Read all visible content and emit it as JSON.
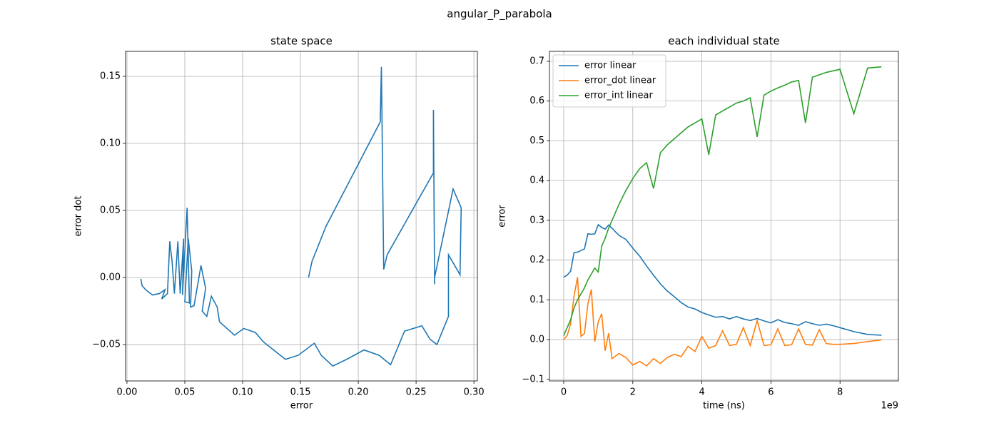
{
  "title": "angular_P_parabola",
  "chart_data": [
    {
      "type": "line",
      "title": "state space",
      "x_label": "error",
      "y_label": "error dot",
      "color": "#1f77b4",
      "grid": true,
      "x": [
        0.157,
        0.16,
        0.172,
        0.219,
        0.22,
        0.222,
        0.225,
        0.265,
        0.265,
        0.266,
        0.266,
        0.282,
        0.289,
        0.288,
        0.278,
        0.278,
        0.268,
        0.262,
        0.255,
        0.24,
        0.228,
        0.218,
        0.205,
        0.19,
        0.178,
        0.168,
        0.162,
        0.148,
        0.137,
        0.118,
        0.111,
        0.101,
        0.093,
        0.08,
        0.078,
        0.073,
        0.069,
        0.065,
        0.068,
        0.064,
        0.058,
        0.055,
        0.056,
        0.053,
        0.05,
        0.054,
        0.052,
        0.048,
        0.049,
        0.046,
        0.044,
        0.041,
        0.039,
        0.037,
        0.035,
        0.03,
        0.033,
        0.028,
        0.022,
        0.016,
        0.013,
        0.012
      ],
      "values": [
        0.0,
        0.012,
        0.038,
        0.116,
        0.157,
        0.006,
        0.017,
        0.078,
        0.125,
        -0.005,
        0.0,
        0.066,
        0.052,
        0.002,
        0.017,
        -0.029,
        -0.05,
        -0.046,
        -0.036,
        -0.04,
        -0.065,
        -0.058,
        -0.054,
        -0.061,
        -0.066,
        -0.058,
        -0.049,
        -0.058,
        -0.061,
        -0.048,
        -0.041,
        -0.038,
        -0.043,
        -0.033,
        -0.022,
        -0.014,
        -0.029,
        -0.025,
        -0.008,
        0.009,
        -0.021,
        -0.022,
        0.005,
        0.029,
        -0.018,
        -0.019,
        0.052,
        -0.013,
        0.029,
        -0.012,
        0.027,
        -0.012,
        0.012,
        0.027,
        -0.012,
        -0.016,
        -0.009,
        -0.012,
        -0.013,
        -0.009,
        -0.006,
        -0.001
      ],
      "xlim": [
        -0.0012,
        0.303
      ],
      "ylim": [
        -0.0771,
        0.1686
      ],
      "xticks": [
        {
          "value": 0,
          "label": "0.00"
        },
        0.05,
        {
          "value": 0.1,
          "label": "0.10"
        },
        0.15,
        {
          "value": 0.2,
          "label": "0.20"
        },
        0.25,
        {
          "value": 0.3,
          "label": "0.30"
        }
      ],
      "yticks": [
        {
          "value": -0.05,
          "label": "−0.05"
        },
        {
          "value": 0,
          "label": "0.00"
        },
        0.05,
        {
          "value": 0.1,
          "label": "0.10"
        },
        0.15
      ]
    },
    {
      "type": "line",
      "title": "each individual state",
      "x_label": "time (ns)",
      "y_label": "error",
      "x_offset_label": "1e9",
      "grid": true,
      "legend": "upper left",
      "x": [
        0,
        100000000,
        200000000,
        300000000,
        400000000,
        500000000,
        600000000,
        700000000,
        800000000,
        900000000,
        1000000000,
        1100000000,
        1200000000,
        1300000000,
        1400000000,
        1600000000,
        1800000000,
        2000000000,
        2200000000,
        2400000000,
        2600000000,
        2800000000,
        3000000000,
        3200000000,
        3400000000,
        3600000000,
        3800000000,
        4000000000,
        4200000000,
        4400000000,
        4600000000,
        4800000000,
        5000000000,
        5200000000,
        5400000000,
        5600000000,
        5800000000,
        6000000000,
        6200000000,
        6400000000,
        6600000000,
        6800000000,
        7000000000,
        7200000000,
        7400000000,
        7600000000,
        7800000000,
        8000000000,
        8400000000,
        8800000000,
        9200000000
      ],
      "series": [
        {
          "name": "error linear",
          "color": "#1f77b4",
          "values": [
            0.157,
            0.162,
            0.172,
            0.219,
            0.22,
            0.224,
            0.228,
            0.266,
            0.265,
            0.266,
            0.289,
            0.282,
            0.278,
            0.288,
            0.28,
            0.262,
            0.252,
            0.23,
            0.21,
            0.185,
            0.162,
            0.14,
            0.122,
            0.108,
            0.093,
            0.082,
            0.077,
            0.068,
            0.062,
            0.056,
            0.058,
            0.052,
            0.058,
            0.052,
            0.048,
            0.053,
            0.047,
            0.042,
            0.05,
            0.043,
            0.04,
            0.036,
            0.045,
            0.04,
            0.036,
            0.039,
            0.035,
            0.03,
            0.02,
            0.013,
            0.011
          ]
        },
        {
          "name": "error_dot linear",
          "color": "#ff7f0e",
          "values": [
            0.0,
            0.01,
            0.04,
            0.11,
            0.157,
            0.008,
            0.015,
            0.09,
            0.126,
            -0.005,
            0.045,
            0.065,
            -0.028,
            0.016,
            -0.048,
            -0.035,
            -0.045,
            -0.064,
            -0.055,
            -0.066,
            -0.048,
            -0.06,
            -0.045,
            -0.037,
            -0.043,
            -0.017,
            -0.03,
            0.008,
            -0.022,
            -0.015,
            0.022,
            -0.015,
            -0.012,
            0.03,
            -0.015,
            0.048,
            -0.015,
            -0.013,
            0.027,
            -0.015,
            -0.013,
            0.027,
            -0.012,
            -0.014,
            0.025,
            -0.01,
            -0.012,
            -0.012,
            -0.01,
            -0.005,
            -0.001
          ]
        },
        {
          "name": "error_int linear",
          "color": "#2ca02c",
          "values": [
            0.01,
            0.03,
            0.05,
            0.08,
            0.1,
            0.115,
            0.13,
            0.15,
            0.165,
            0.18,
            0.17,
            0.235,
            0.255,
            0.28,
            0.3,
            0.34,
            0.375,
            0.405,
            0.43,
            0.445,
            0.38,
            0.47,
            0.49,
            0.505,
            0.52,
            0.535,
            0.545,
            0.555,
            0.465,
            0.565,
            0.575,
            0.585,
            0.595,
            0.6,
            0.608,
            0.51,
            0.615,
            0.625,
            0.633,
            0.64,
            0.648,
            0.652,
            0.545,
            0.66,
            0.666,
            0.672,
            0.676,
            0.68,
            0.568,
            0.683,
            0.686
          ]
        }
      ],
      "xlim": [
        -413000000,
        9690000000
      ],
      "ylim": [
        -0.104,
        0.725
      ],
      "xticks": [
        0,
        {
          "value": 2000000000,
          "label": "2"
        },
        {
          "value": 4000000000,
          "label": "4"
        },
        {
          "value": 6000000000,
          "label": "6"
        },
        {
          "value": 8000000000,
          "label": "8"
        }
      ],
      "yticks": [
        {
          "value": -0.1,
          "label": "−0.1"
        },
        {
          "value": 0,
          "label": "0.0"
        },
        0.1,
        0.2,
        0.3,
        0.4,
        0.5,
        0.6,
        0.7
      ]
    }
  ]
}
